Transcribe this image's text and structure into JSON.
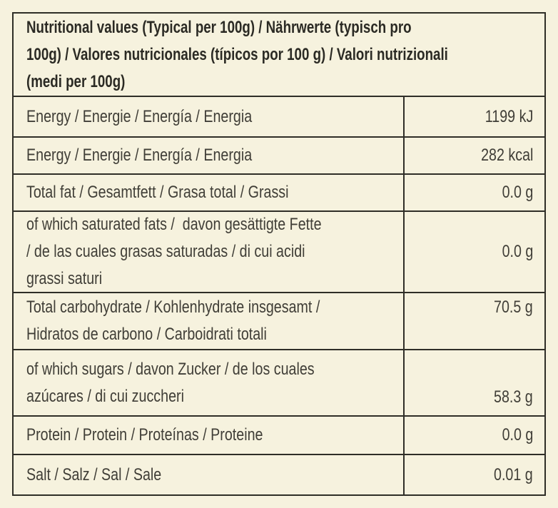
{
  "label": {
    "title": "Nutritional values (Typical per 100g) / Nährwerte (typisch pro\n100g) / Valores nutricionales (típicos por 100 g) / Valori nutrizionali\n(medi per 100g)",
    "rows": [
      {
        "label": "Energy / Energie / Energía / Energia",
        "value": "1199 kJ"
      },
      {
        "label": "Energy / Energie / Energía / Energia",
        "value": "282 kcal"
      },
      {
        "label": "Total fat / Gesamtfett / Grasa total / Grassi",
        "value": "0.0 g"
      },
      {
        "label": "of which saturated fats /  davon gesättigte Fette\n/ de las cuales grasas saturadas / di cui acidi\ngrassi saturi",
        "value": "0.0 g"
      },
      {
        "label": "Total carbohydrate / Kohlenhydrate insgesamt /\nHidratos de carbono / Carboidrati totali",
        "value": "70.5 g"
      },
      {
        "label": "of which sugars / davon Zucker / de los cuales\nazúcares / di cui zuccheri",
        "value": "58.3 g"
      },
      {
        "label": "Protein / Protein / Proteínas / Proteine",
        "value": "0.0 g"
      },
      {
        "label": "Salt / Salz / Sal / Sale",
        "value": "0.01 g"
      }
    ],
    "colors": {
      "background": "#f6f2de",
      "border": "#2f2e27",
      "text": "#403e37",
      "title_text": "#2b2a24"
    }
  }
}
